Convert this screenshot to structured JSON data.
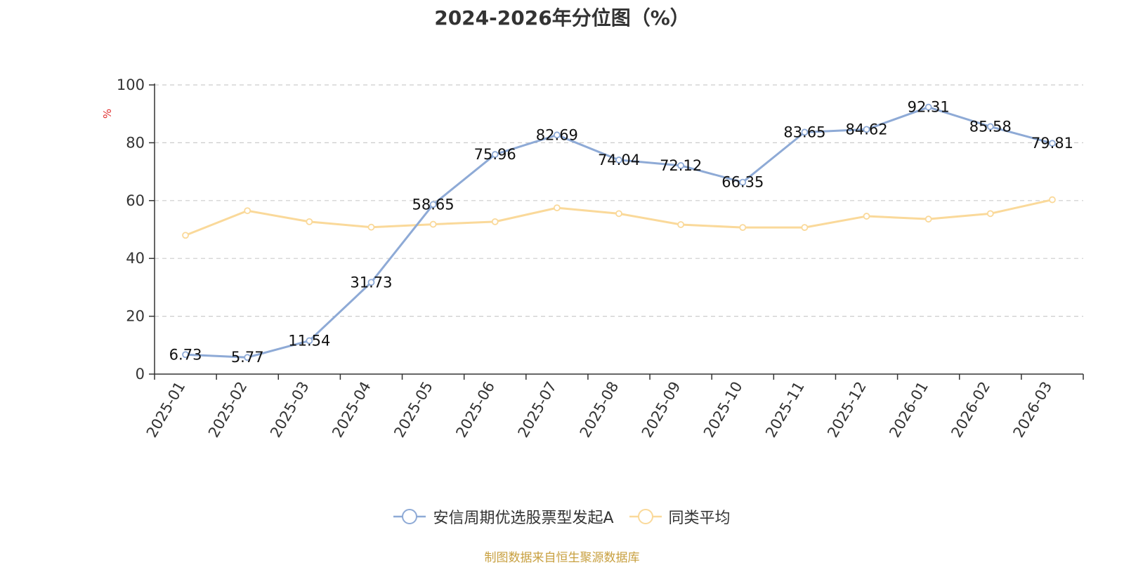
{
  "chart_data": {
    "type": "line",
    "title": "2024-2026年分位图（%）",
    "ylabel": "%",
    "xlabel": "",
    "ylim": [
      0,
      100
    ],
    "yticks": [
      0,
      20,
      40,
      60,
      80,
      100
    ],
    "grid": true,
    "legend_position": "bottom",
    "categories": [
      "2025-01",
      "2025-02",
      "2025-03",
      "2025-04",
      "2025-05",
      "2025-06",
      "2025-07",
      "2025-08",
      "2025-09",
      "2025-10",
      "2025-11",
      "2025-12",
      "2026-01",
      "2026-02",
      "2026-03"
    ],
    "series": [
      {
        "name": "安信周期优选股票型发起A",
        "color": "#8eaad6",
        "values": [
          6.73,
          5.77,
          11.54,
          31.73,
          58.65,
          75.96,
          82.69,
          74.04,
          72.12,
          66.35,
          83.65,
          84.62,
          92.31,
          85.58,
          79.81
        ],
        "show_labels": true
      },
      {
        "name": "同类平均",
        "color": "#fad99a",
        "values": [
          48.0,
          56.5,
          52.7,
          50.8,
          51.8,
          52.7,
          57.5,
          55.5,
          51.7,
          50.7,
          50.7,
          54.6,
          53.6,
          55.5,
          60.3
        ],
        "show_labels": false
      }
    ]
  },
  "footer": {
    "source": "制图数据来自恒生聚源数据库"
  },
  "colors": {
    "axis": "#333333",
    "grid": "#cccccc",
    "ylabel": "#e03030",
    "source_text": "#c8a040"
  }
}
